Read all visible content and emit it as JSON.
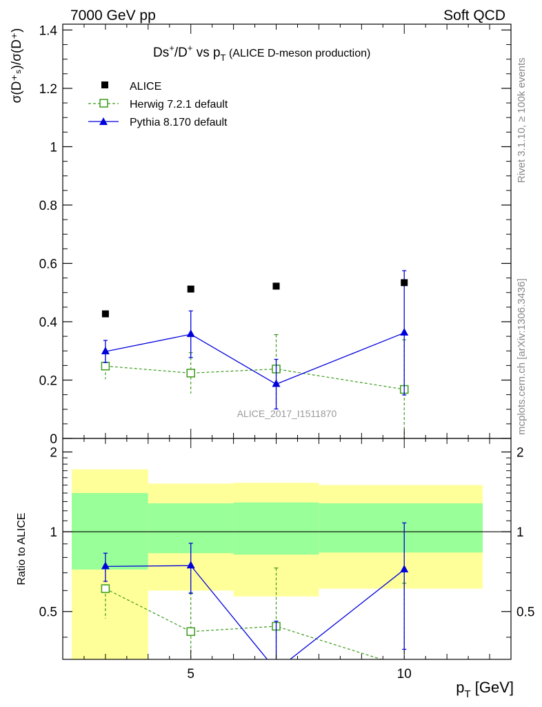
{
  "header": {
    "left": "7000 GeV pp",
    "right": "Soft QCD"
  },
  "title": {
    "main_prefix": "Ds",
    "main_sup1": "+",
    "main_mid": "/D",
    "main_sup2": "+",
    "main_vs": " vs p",
    "main_sub": "T",
    "suffix": " (ALICE D-meson production)"
  },
  "side_text": {
    "rivet": "Rivet 3.1.10, ≥ 100k events",
    "mcplots": "mcplots.cern.ch [arXiv:1306.3436]"
  },
  "watermark": "ALICE_2017_I1511870",
  "axes": {
    "ylabel_main": "σ(D⁺ₛ)/σ(D⁺)",
    "ylabel_ratio": "Ratio to ALICE",
    "xlabel": "p",
    "xlabel_sub": "T",
    "xlabel_unit": " [GeV]"
  },
  "colors": {
    "alice": "#000000",
    "herwig": "#3a9a1a",
    "pythia": "#0000dd",
    "band_outer": "#ffff99",
    "band_inner": "#99ff99"
  },
  "chart_data": [
    {
      "type": "scatter",
      "panel": "main",
      "xlim": [
        2,
        12.5
      ],
      "ylim": [
        0,
        1.42
      ],
      "yticks": [
        0,
        0.2,
        0.4,
        0.6,
        0.8,
        1,
        1.2,
        1.4
      ],
      "ytick_labels": [
        "0",
        "0.2",
        "0.4",
        "0.6",
        "0.8",
        "1",
        "1.2",
        "1.4"
      ],
      "legend": [
        "ALICE",
        "Herwig 7.2.1 default",
        "Pythia 8.170 default"
      ],
      "series": [
        {
          "name": "ALICE",
          "style": "marker-square-filled",
          "x": [
            3,
            5,
            7,
            10
          ],
          "y": [
            0.427,
            0.512,
            0.522,
            0.534
          ]
        },
        {
          "name": "Herwig 7.2.1 default",
          "style": "dashed-open-square",
          "x": [
            3,
            5,
            7,
            10
          ],
          "y": [
            0.248,
            0.224,
            0.238,
            0.168
          ],
          "err": [
            0.045,
            0.07,
            0.118,
            0.17
          ]
        },
        {
          "name": "Pythia 8.170 default",
          "style": "solid-filled-triangle",
          "x": [
            3,
            5,
            7,
            10
          ],
          "y": [
            0.298,
            0.357,
            0.186,
            0.362
          ],
          "err": [
            0.038,
            0.08,
            0.085,
            0.213
          ]
        }
      ]
    },
    {
      "type": "scatter",
      "panel": "ratio",
      "xlim": [
        2,
        12.5
      ],
      "ylim": [
        0.33,
        2.25
      ],
      "yticks": [
        0.5,
        1,
        2
      ],
      "ytick_labels": [
        "0.5",
        "1",
        "2"
      ],
      "xticks": [
        5,
        10
      ],
      "xtick_labels": [
        "5",
        "10"
      ],
      "bands": [
        {
          "x0": 2,
          "x1": 4,
          "outer": [
            0.33,
            1.72
          ],
          "inner": [
            0.72,
            1.4
          ]
        },
        {
          "x0": 4,
          "x1": 6,
          "outer": [
            0.6,
            1.52
          ],
          "inner": [
            0.83,
            1.28
          ]
        },
        {
          "x0": 6,
          "x1": 8,
          "outer": [
            0.57,
            1.53
          ],
          "inner": [
            0.82,
            1.29
          ]
        },
        {
          "x0": 8,
          "x1": 12,
          "outer": [
            0.61,
            1.5
          ],
          "inner": [
            0.835,
            1.28
          ]
        }
      ],
      "series": [
        {
          "name": "Herwig 7.2.1 default",
          "x": [
            3,
            5,
            7,
            10
          ],
          "y": [
            0.61,
            0.42,
            0.44,
            0.31
          ],
          "err": [
            0.14,
            0.17,
            0.29,
            0.33
          ]
        },
        {
          "name": "Pythia 8.170 default",
          "x": [
            3,
            5,
            7,
            10
          ],
          "y": [
            0.74,
            0.745,
            0.3,
            0.72
          ],
          "err": [
            0.09,
            0.16,
            0.16,
            0.36
          ]
        }
      ]
    }
  ]
}
